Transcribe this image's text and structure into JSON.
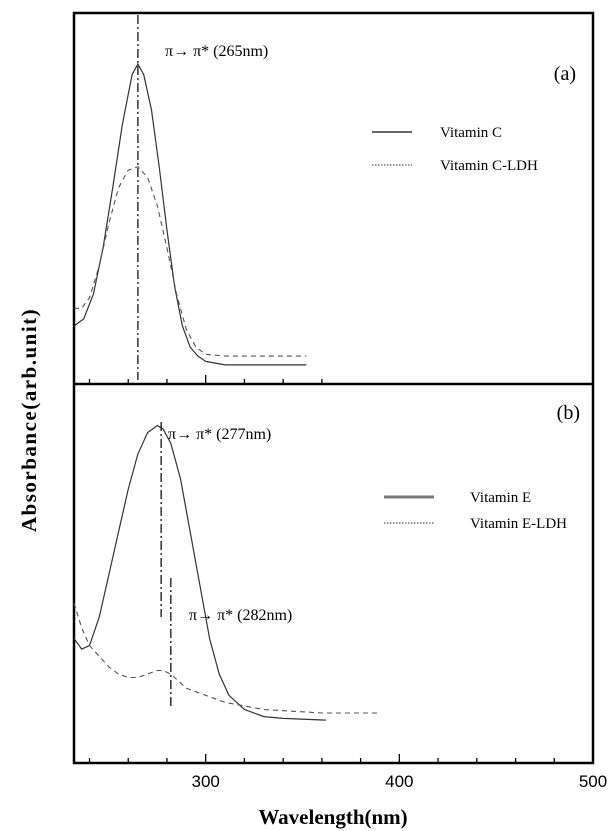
{
  "chart_data": {
    "ylabel": "Absorbance(arb.unit)",
    "xlabel": "Wavelength(nm)",
    "x_ticks": [
      300,
      400,
      500
    ],
    "x_range": [
      232,
      500
    ],
    "panels": [
      {
        "id": "a",
        "type": "line",
        "panel_label": "(a)",
        "xlim": [
          232,
          500
        ],
        "ylim": [
          0,
          1
        ],
        "annotations": [
          {
            "text": "π→ π* (265nm)",
            "x": 265
          }
        ],
        "series": [
          {
            "name": "Vitamin C",
            "style": "solid",
            "x": [
              232,
              237,
              242,
              247,
              252,
              257,
              262,
              265,
              268,
              272,
              276,
              280,
              284,
              288,
              292,
              296,
              300,
              310,
              330,
              352
            ],
            "y": [
              0.13,
              0.15,
              0.22,
              0.35,
              0.52,
              0.7,
              0.84,
              0.87,
              0.84,
              0.74,
              0.58,
              0.4,
              0.24,
              0.13,
              0.07,
              0.045,
              0.03,
              0.02,
              0.02,
              0.02
            ]
          },
          {
            "name": "Vitamin C-LDH",
            "style": "dashed",
            "x": [
              232,
              236,
              240,
              245,
              250,
              255,
              260,
              265,
              270,
              275,
              280,
              285,
              290,
              295,
              300,
              310,
              330,
              352
            ],
            "y": [
              0.18,
              0.18,
              0.21,
              0.3,
              0.42,
              0.52,
              0.57,
              0.58,
              0.55,
              0.47,
              0.35,
              0.22,
              0.12,
              0.07,
              0.05,
              0.045,
              0.045,
              0.045
            ]
          }
        ]
      },
      {
        "id": "b",
        "type": "line",
        "panel_label": "(b)",
        "xlim": [
          232,
          500
        ],
        "ylim": [
          0,
          1
        ],
        "annotations": [
          {
            "text": "π→ π* (277nm)",
            "x": 277
          },
          {
            "text": "π→ π* (282nm)",
            "x": 282
          }
        ],
        "series": [
          {
            "name": "Vitamin E",
            "style": "solid",
            "x": [
              232,
              236,
              240,
              245,
              250,
              255,
              260,
              265,
              270,
              275,
              278,
              282,
              287,
              292,
              297,
              302,
              307,
              312,
              320,
              330,
              340,
              362
            ],
            "y": [
              0.3,
              0.27,
              0.28,
              0.36,
              0.48,
              0.6,
              0.72,
              0.82,
              0.88,
              0.9,
              0.89,
              0.85,
              0.75,
              0.6,
              0.45,
              0.3,
              0.2,
              0.14,
              0.1,
              0.08,
              0.075,
              0.07
            ]
          },
          {
            "name": "Vitamin E-LDH",
            "style": "dashed",
            "x": [
              232,
              236,
              240,
              245,
              250,
              255,
              260,
              265,
              270,
              275,
              278,
              282,
              286,
              290,
              295,
              300,
              310,
              330,
              360,
              390
            ],
            "y": [
              0.4,
              0.33,
              0.28,
              0.25,
              0.22,
              0.2,
              0.19,
              0.19,
              0.2,
              0.21,
              0.21,
              0.2,
              0.18,
              0.16,
              0.15,
              0.14,
              0.12,
              0.1,
              0.09,
              0.09
            ]
          }
        ]
      }
    ]
  }
}
